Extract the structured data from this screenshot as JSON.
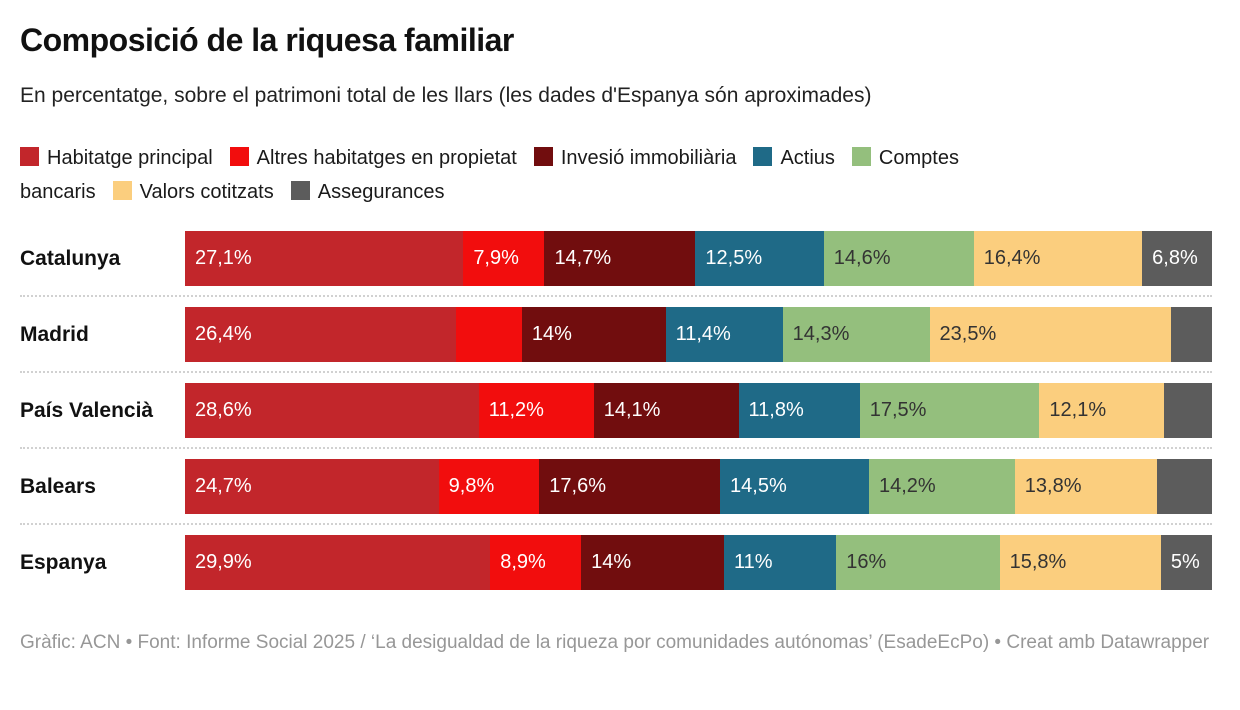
{
  "title": "Composició de la riquesa familiar",
  "subtitle": "En percentatge, sobre el patrimoni total de les llars (les dades d'Espanya són aproximades)",
  "footer": "Gràfic: ACN • Font: Informe Social 2025 / ‘La desigualdad de la riqueza por comunidades autónomas’ (EsadeEcPo) • Creat amb Datawrapper",
  "colors": {
    "habitatge_principal": "#c2262b",
    "altres_habitatges": "#f20d0d",
    "invesio_immobiliaria": "#710d0e",
    "actius": "#1f6a87",
    "comptes_bancaris": "#94bf7d",
    "valors_cotitzats": "#fbce7e",
    "assegurances": "#5c5c5c",
    "separator": "#d1d1d1",
    "footer_text": "#979797"
  },
  "legend": {
    "lines": [
      {
        "items": [
          {
            "swatch": "#c2262b",
            "label": "Habitatge principal"
          },
          {
            "swatch": "#f20d0d",
            "label": "Altres habitatges en propietat"
          },
          {
            "swatch": "#710d0e",
            "label": "Invesió immobiliària"
          },
          {
            "swatch": "#1f6a87",
            "label": "Actius"
          },
          {
            "swatch": "#94bf7d",
            "label": "Comptes"
          }
        ]
      },
      {
        "items": [
          {
            "swatch": null,
            "label": "bancaris"
          },
          {
            "swatch": "#fbce7e",
            "label": "Valors cotitzats"
          },
          {
            "swatch": "#5c5c5c",
            "label": "Assegurances"
          }
        ]
      }
    ]
  },
  "chart_data": {
    "type": "bar",
    "variant": "stacked-horizontal",
    "unit": "%",
    "grid": false,
    "legend_position": "top",
    "xlim": [
      0,
      100
    ],
    "title": "Composició de la riquesa familiar",
    "subtitle": "En percentatge, sobre el patrimoni total de les llars (les dades d'Espanya són aproximades)",
    "categories": [
      "Catalunya",
      "Madrid",
      "País Valencià",
      "Balears",
      "Espanya"
    ],
    "series": [
      {
        "name": "Habitatge principal",
        "color": "#c2262b",
        "label_color": "#ffffff",
        "values": [
          27.1,
          26.4,
          28.6,
          24.7,
          29.9
        ]
      },
      {
        "name": "Altres habitatges en propietat",
        "color": "#f20d0d",
        "label_color": "#ffffff",
        "values": [
          7.9,
          6.4,
          11.2,
          9.8,
          8.9
        ]
      },
      {
        "name": "Invesió immobiliària",
        "color": "#710d0e",
        "label_color": "#ffffff",
        "values": [
          14.7,
          14.0,
          14.1,
          17.6,
          14.0
        ]
      },
      {
        "name": "Actius",
        "color": "#1f6a87",
        "label_color": "#ffffff",
        "values": [
          12.5,
          11.4,
          11.8,
          14.5,
          11.0
        ]
      },
      {
        "name": "Comptes bancaris",
        "color": "#94bf7d",
        "label_color": "#333333",
        "values": [
          14.6,
          14.3,
          17.5,
          14.2,
          16.0
        ]
      },
      {
        "name": "Valors cotitzats",
        "color": "#fbce7e",
        "label_color": "#333333",
        "values": [
          16.4,
          23.5,
          12.1,
          13.8,
          15.8
        ]
      },
      {
        "name": "Assegurances",
        "color": "#5c5c5c",
        "label_color": "#ffffff",
        "values": [
          6.8,
          4.0,
          4.7,
          5.4,
          5.0
        ]
      }
    ],
    "displayed_labels": [
      [
        "27,1%",
        "7,9%",
        "14,7%",
        "12,5%",
        "14,6%",
        "16,4%",
        "6,8%"
      ],
      [
        "26,4%",
        "",
        "14%",
        "11,4%",
        "14,3%",
        "23,5%",
        ""
      ],
      [
        "28,6%",
        "11,2%",
        "14,1%",
        "11,8%",
        "17,5%",
        "12,1%",
        ""
      ],
      [
        "24,7%",
        "9,8%",
        "17,6%",
        "14,5%",
        "14,2%",
        "13,8%",
        ""
      ],
      [
        "29,9%",
        "8,9%",
        "14%",
        "11%",
        "16%",
        "15,8%",
        "5%"
      ]
    ],
    "note": "values for unlabeled segments estimated from bar widths"
  }
}
